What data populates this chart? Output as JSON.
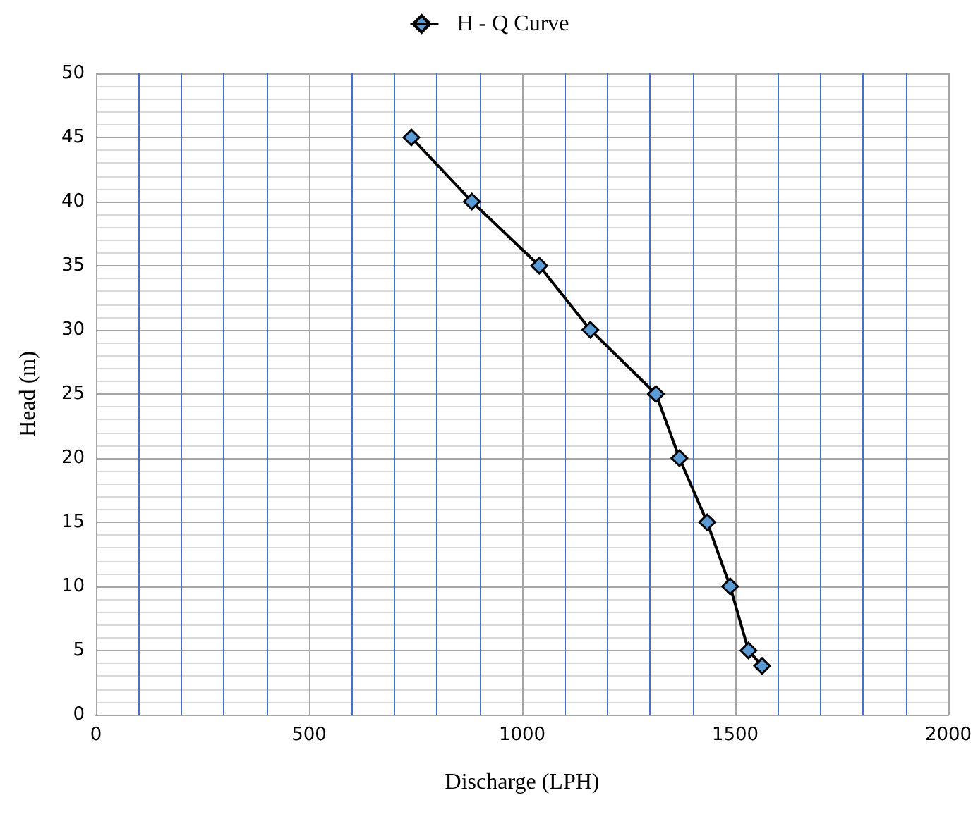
{
  "chart_data": {
    "type": "line",
    "xlabel": "Discharge (LPH)",
    "ylabel": "Head (m)",
    "x": [
      740,
      882,
      1040,
      1160,
      1314,
      1369,
      1434,
      1488,
      1531,
      1563
    ],
    "series": [
      {
        "name": "H - Q Curve",
        "color": "#5b9bd5",
        "values": [
          45,
          40,
          35,
          30,
          25,
          20,
          15,
          10,
          5,
          3.8
        ]
      }
    ],
    "xlim": [
      0,
      2000
    ],
    "xticks": [
      0,
      {
        "value": 100,
        "label": null
      },
      {
        "value": 200,
        "label": null
      },
      {
        "value": 300,
        "label": null
      },
      {
        "value": 400,
        "label": null
      },
      500,
      {
        "value": 600,
        "label": null
      },
      {
        "value": 700,
        "label": null
      },
      {
        "value": 800,
        "label": null
      },
      {
        "value": 900,
        "label": null
      },
      1000,
      {
        "value": 1100,
        "label": null
      },
      {
        "value": 1200,
        "label": null
      },
      {
        "value": 1300,
        "label": null
      },
      {
        "value": 1400,
        "label": null
      },
      1500,
      {
        "value": 1600,
        "label": null
      },
      {
        "value": 1700,
        "label": null
      },
      {
        "value": 1800,
        "label": null
      },
      {
        "value": 1900,
        "label": null
      },
      2000
    ],
    "ylim": [
      0,
      50
    ],
    "yticks": [
      0,
      {
        "value": 1,
        "label": null
      },
      {
        "value": 2,
        "label": null
      },
      {
        "value": 3,
        "label": null
      },
      {
        "value": 4,
        "label": null
      },
      5,
      {
        "value": 6,
        "label": null
      },
      {
        "value": 7,
        "label": null
      },
      {
        "value": 8,
        "label": null
      },
      {
        "value": 9,
        "label": null
      },
      10,
      {
        "value": 11,
        "label": null
      },
      {
        "value": 12,
        "label": null
      },
      {
        "value": 13,
        "label": null
      },
      {
        "value": 14,
        "label": null
      },
      15,
      {
        "value": 16,
        "label": null
      },
      {
        "value": 17,
        "label": null
      },
      {
        "value": 18,
        "label": null
      },
      {
        "value": 19,
        "label": null
      },
      20,
      {
        "value": 21,
        "label": null
      },
      {
        "value": 22,
        "label": null
      },
      {
        "value": 23,
        "label": null
      },
      {
        "value": 24,
        "label": null
      },
      25,
      {
        "value": 26,
        "label": null
      },
      {
        "value": 27,
        "label": null
      },
      {
        "value": 28,
        "label": null
      },
      {
        "value": 29,
        "label": null
      },
      30,
      {
        "value": 31,
        "label": null
      },
      {
        "value": 32,
        "label": null
      },
      {
        "value": 33,
        "label": null
      },
      {
        "value": 34,
        "label": null
      },
      35,
      {
        "value": 36,
        "label": null
      },
      {
        "value": 37,
        "label": null
      },
      {
        "value": 38,
        "label": null
      },
      {
        "value": 39,
        "label": null
      },
      40,
      {
        "value": 41,
        "label": null
      },
      {
        "value": 42,
        "label": null
      },
      {
        "value": 43,
        "label": null
      },
      {
        "value": 44,
        "label": null
      },
      45,
      {
        "value": 46,
        "label": null
      },
      {
        "value": 47,
        "label": null
      },
      {
        "value": 48,
        "label": null
      },
      {
        "value": 49,
        "label": null
      },
      50
    ],
    "grid": true,
    "legend": "top",
    "marker": "diamond",
    "line_style": "solid"
  }
}
